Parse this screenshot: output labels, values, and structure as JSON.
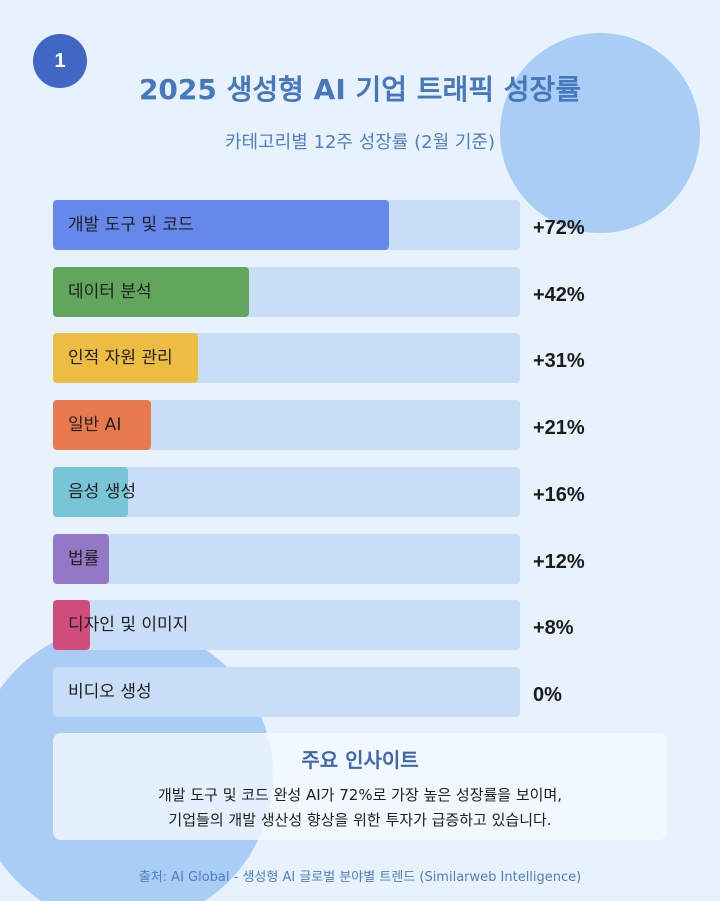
{
  "badge": "1",
  "chart_data": {
    "type": "bar",
    "orientation": "horizontal",
    "title": "2025 생성형 AI 기업 트래픽 성장률",
    "subtitle": "카테고리별 12주 성장률 (2월 기준)",
    "xlim": [
      0,
      100
    ],
    "categories": [
      "개발 도구 및 코드",
      "데이터 분석",
      "인적 자원 관리",
      "일반 AI",
      "음성 생성",
      "법률",
      "디자인 및 이미지",
      "비디오 생성"
    ],
    "values": [
      72,
      42,
      31,
      21,
      16,
      12,
      8,
      0
    ],
    "value_labels": [
      "+72%",
      "+42%",
      "+31%",
      "+21%",
      "+16%",
      "+12%",
      "+8%",
      "0%"
    ],
    "colors": [
      "#6688ea",
      "#62a55d",
      "#ecbd42",
      "#e8794e",
      "#78c5d6",
      "#9378c6",
      "#d04c7c",
      "#c8ddf6"
    ]
  },
  "insight": {
    "title": "주요 인사이트",
    "line1": "개발 도구 및 코드 완성 AI가 72%로 가장 높은 성장률을 보이며,",
    "line2": "기업들의 개발 생산성 향상을 위한 투자가 급증하고 있습니다."
  },
  "source": "출처: AI Global - 생성형 AI 글로벌 분야별 트렌드 (Similarweb Intelligence)"
}
